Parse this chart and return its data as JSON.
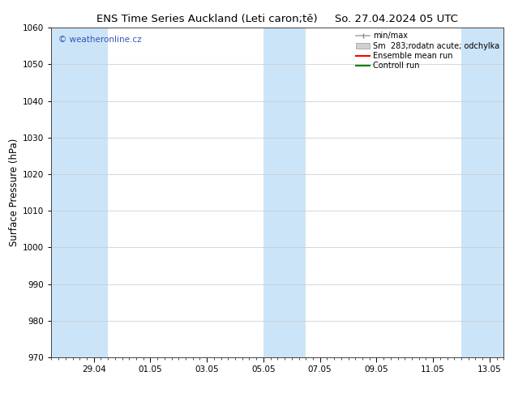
{
  "title_left": "ENS Time Series Auckland (Leti caron;tě)",
  "title_right": "So. 27.04.2024 05 UTC",
  "ylabel": "Surface Pressure (hPa)",
  "ylim": [
    970,
    1060
  ],
  "yticks": [
    970,
    980,
    990,
    1000,
    1010,
    1020,
    1030,
    1040,
    1050,
    1060
  ],
  "watermark": "© weatheronline.cz",
  "legend_entries": [
    "min/max",
    "Sm  283;rodatn acute; odchylka",
    "Ensemble mean run",
    "Controll run"
  ],
  "band_color": "#cce4f7",
  "background_color": "#ffffff",
  "grid_color": "#c8c8c8",
  "ensemble_mean_color": "#ff0000",
  "control_run_color": "#008000",
  "watermark_color": "#3355bb",
  "x_start": 0.0,
  "x_end": 16.0,
  "shaded_bands": [
    {
      "xmin": 0.0,
      "xmax": 2.0
    },
    {
      "xmin": 7.5,
      "xmax": 9.0
    },
    {
      "xmin": 14.5,
      "xmax": 16.0
    }
  ],
  "tick_positions": [
    1.5,
    3.5,
    5.5,
    7.5,
    9.5,
    11.5,
    13.5,
    15.5
  ],
  "tick_labels": [
    "29.04",
    "01.05",
    "03.05",
    "05.05",
    "07.05",
    "09.05",
    "11.05",
    "13.05"
  ],
  "minor_tick_step": 0.25
}
